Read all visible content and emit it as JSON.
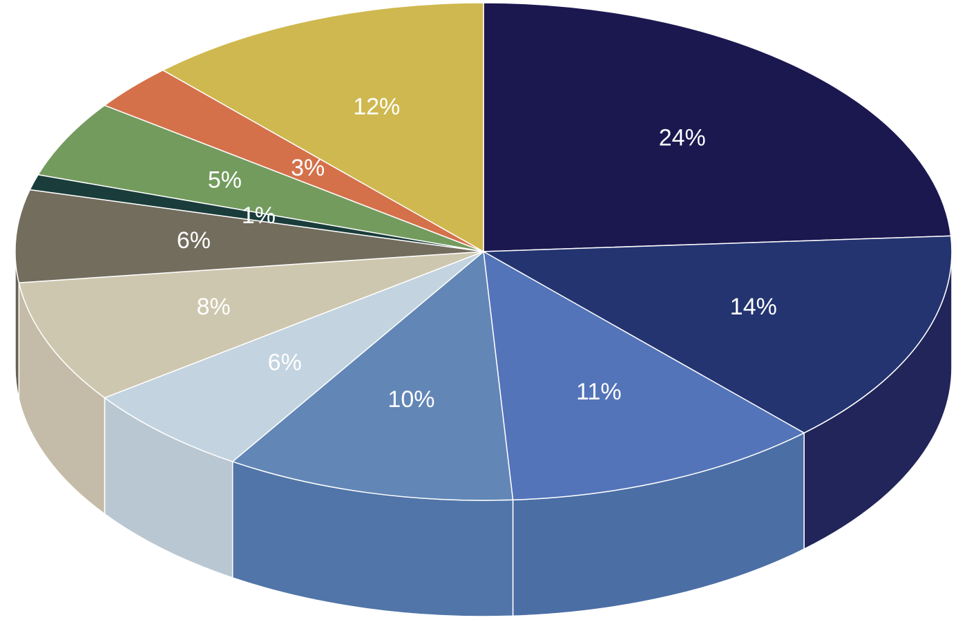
{
  "chart_data": {
    "type": "pie",
    "style": "3d",
    "start_angle_deg": 90,
    "direction": "clockwise",
    "slices": [
      {
        "label": "24%",
        "value": 24,
        "color": "#1b1850",
        "side_color": "#212559"
      },
      {
        "label": "14%",
        "value": 14,
        "color": "#243470",
        "side_color": "#212559"
      },
      {
        "label": "11%",
        "value": 11,
        "color": "#5474b9",
        "side_color": "#4b6ea5"
      },
      {
        "label": "10%",
        "value": 10,
        "color": "#6286b6",
        "side_color": "#5175a8"
      },
      {
        "label": "6%",
        "value": 6,
        "color": "#c3d3e0",
        "side_color": "#b9c7d2"
      },
      {
        "label": "8%",
        "value": 8,
        "color": "#cec7af",
        "side_color": "#c4bca8"
      },
      {
        "label": "6%",
        "value": 6,
        "color": "#736d5e",
        "side_color": "#676253"
      },
      {
        "label": "1%",
        "value": 1,
        "color": "#1a3d3b",
        "side_color": "#173634"
      },
      {
        "label": "5%",
        "value": 5,
        "color": "#739b5e",
        "side_color": "#668c53"
      },
      {
        "label": "3%",
        "value": 3,
        "color": "#d4714a",
        "side_color": "#bf6442"
      },
      {
        "label": "12%",
        "value": 12,
        "color": "#cfb84f",
        "side_color": "#bca745"
      }
    ]
  }
}
